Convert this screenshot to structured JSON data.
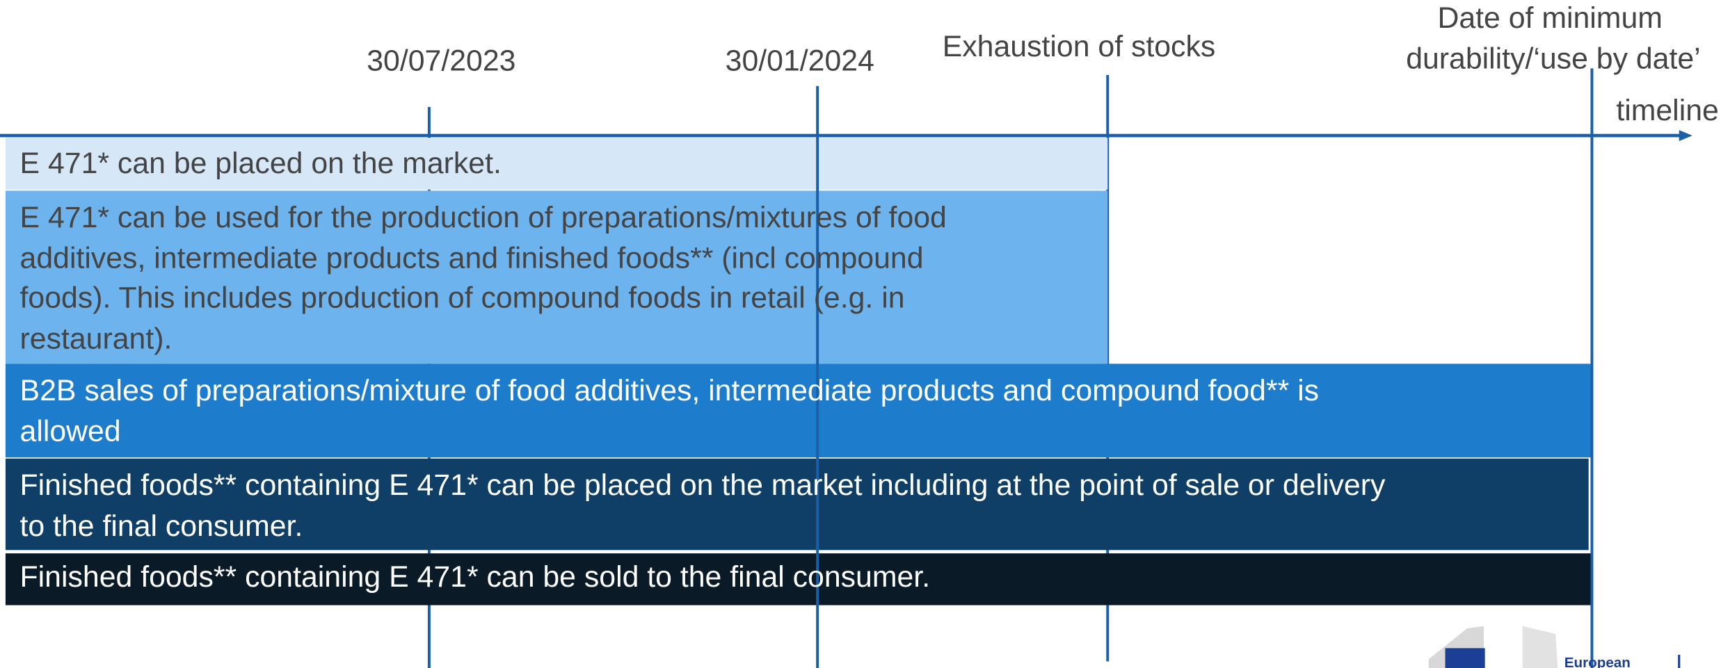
{
  "markers": [
    {
      "label": [
        "30/07/2023"
      ]
    },
    {
      "label": [
        "30/01/2024"
      ]
    },
    {
      "label": [
        "Exhaustion of stocks"
      ]
    },
    {
      "label": [
        "Date of minimum",
        "durability/‘use by date’"
      ]
    }
  ],
  "axis_label": "timeline",
  "phases": [
    {
      "lines": [
        "E 471* can be placed on the market."
      ]
    },
    {
      "lines": [
        "E 471* can be used for the production of preparations/mixtures of food",
        "additives, intermediate products and finished foods** (incl compound",
        "foods). This includes production of compound foods in retail (e.g. in",
        "restaurant)."
      ]
    },
    {
      "lines": [
        "B2B sales of preparations/mixture of food additives, intermediate products and compound food** is",
        "allowed"
      ]
    },
    {
      "lines": [
        "Finished foods** containing E 471* can be placed on the market including at the point of sale or delivery",
        "to the final consumer."
      ]
    },
    {
      "lines": [
        "Finished foods** containing E 471* can be sold to the final consumer."
      ]
    }
  ],
  "logo": {
    "text": "European"
  }
}
